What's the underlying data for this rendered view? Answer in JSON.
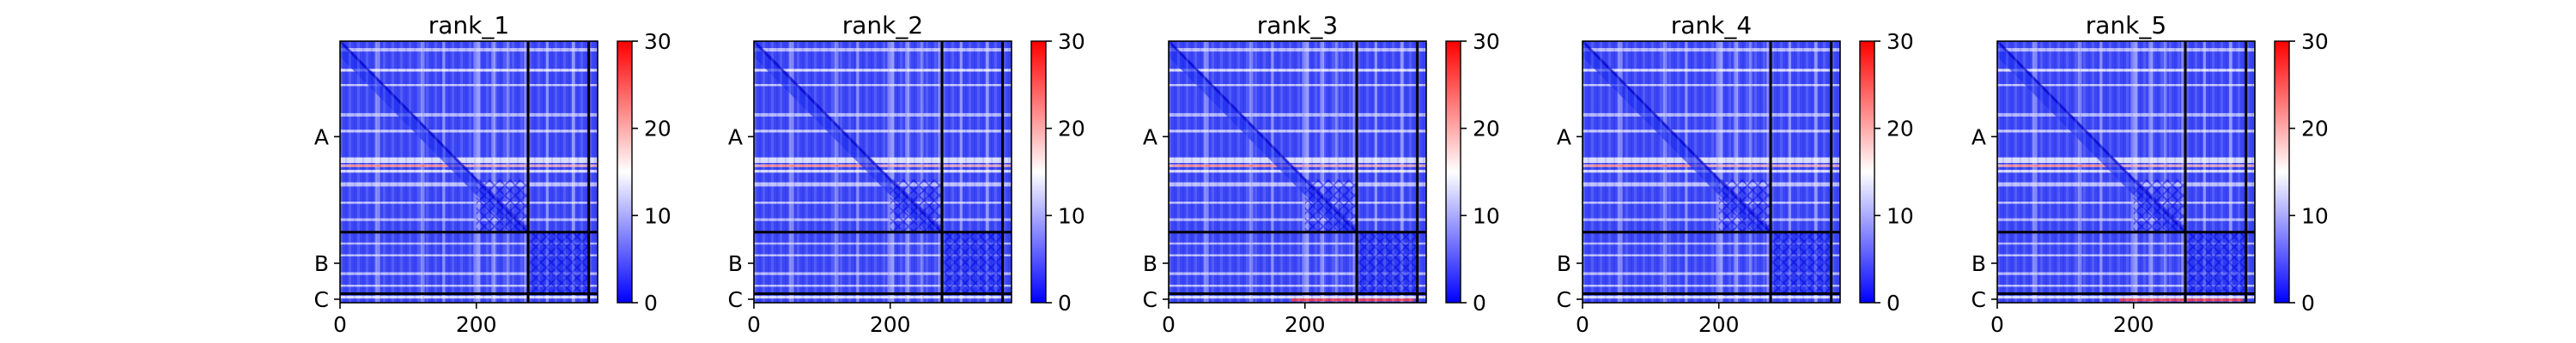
{
  "chart_data": {
    "type": "heatmap",
    "colorbar": {
      "ticks": [
        "0",
        "10",
        "20",
        "30"
      ],
      "vmin": 0,
      "vmax": 30,
      "colormap": "bwr",
      "colors": {
        "low": "#0000ff",
        "mid": "#ffffff",
        "high": "#ff0000"
      }
    },
    "x_ticks": [
      {
        "value": 0,
        "label": "0"
      },
      {
        "value": 200,
        "label": "200"
      }
    ],
    "y_ticks": [
      {
        "value": 138,
        "label": "A"
      },
      {
        "value": 321,
        "label": "B"
      },
      {
        "value": 373,
        "label": "C"
      }
    ],
    "x_range": [
      0,
      378
    ],
    "y_range": [
      0,
      378
    ],
    "chain_boundaries": [
      276,
      365
    ],
    "panels": [
      {
        "title": "rank_1",
        "bottom_red_band": false
      },
      {
        "title": "rank_2",
        "bottom_red_band": false
      },
      {
        "title": "rank_3",
        "bottom_red_band": true
      },
      {
        "title": "rank_4",
        "bottom_red_band": false
      },
      {
        "title": "rank_5",
        "bottom_red_band": true
      }
    ]
  }
}
